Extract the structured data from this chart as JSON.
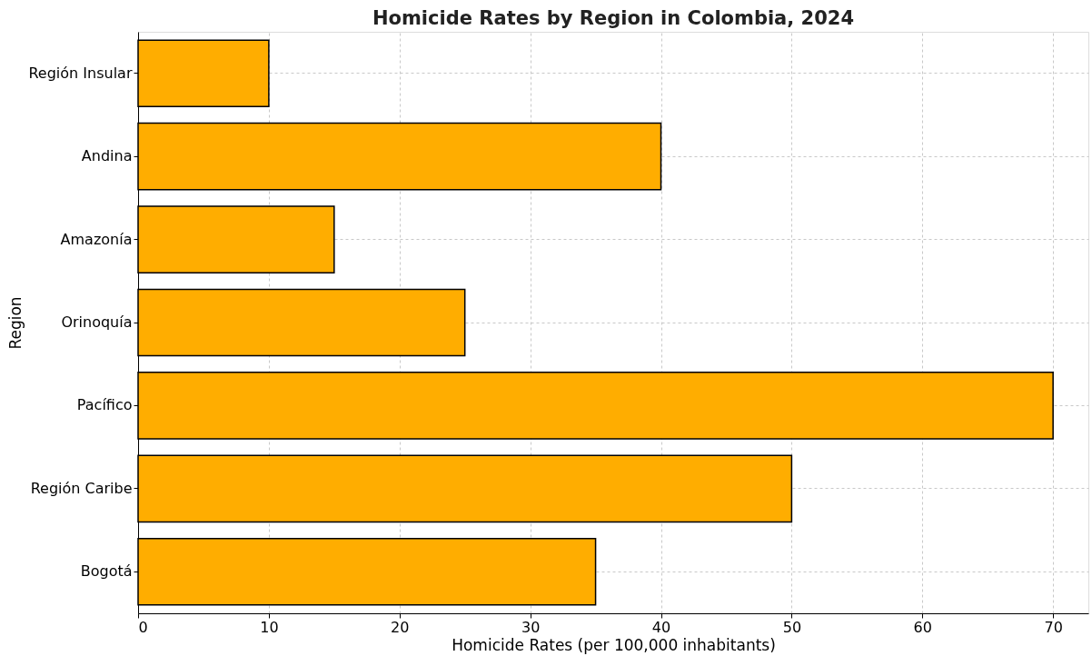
{
  "chart_data": {
    "type": "bar",
    "orientation": "horizontal",
    "title": "Homicide Rates by Region in Colombia, 2024",
    "xlabel": "Homicide Rates (per 100,000 inhabitants)",
    "ylabel": "Region",
    "categories": [
      "Región Insular",
      "Andina",
      "Amazonía",
      "Orinoquía",
      "Pacífico",
      "Región Caribe",
      "Bogotá"
    ],
    "values": [
      10,
      40,
      15,
      25,
      70,
      50,
      35
    ],
    "color": "#ffad00",
    "xlim": [
      0,
      72.7
    ],
    "xticks": [
      0,
      10,
      20,
      30,
      40,
      50,
      60,
      70
    ],
    "grid": true
  }
}
